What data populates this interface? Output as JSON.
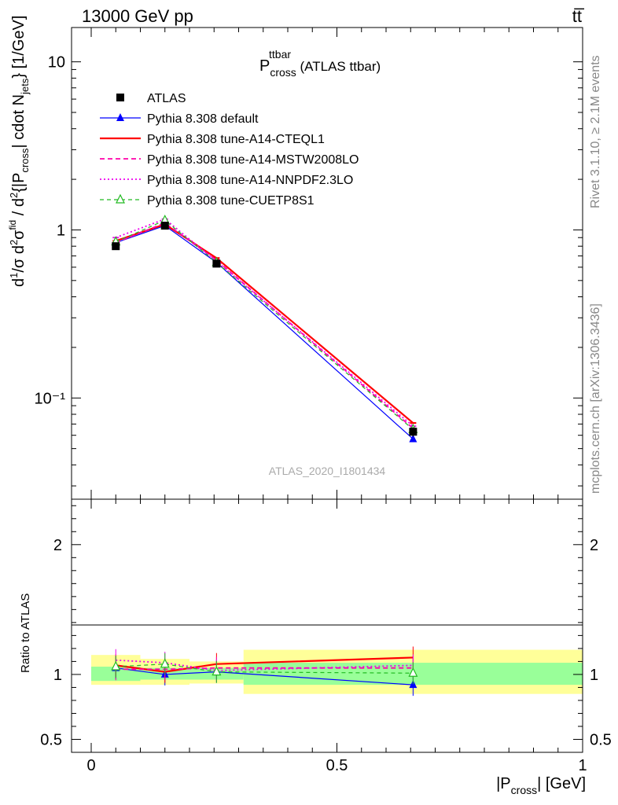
{
  "header": {
    "energy_label": "13000 GeV pp",
    "process_label": "tt̅"
  },
  "side_labels": {
    "rivet": "Rivet 3.1.10, ≥ 2.1M events",
    "mcplots": "mcplots.cern.ch [arXiv:1306.3436]"
  },
  "plot_title": {
    "main": "P",
    "sup": "ttbar",
    "sub": "cross",
    "suffix": " (ATLAS ttbar)"
  },
  "analysis_id": "ATLAS_2020_I1801434",
  "colors": {
    "atlas": "#000000",
    "default": "#0000ff",
    "cteql1": "#ff0000",
    "mstw": "#ff00aa",
    "nnpdf": "#ee00ee",
    "cuetp8s1": "#22bb22",
    "band_inner": "#99ff99",
    "band_outer": "#ffff99"
  },
  "chart_data": [
    {
      "type": "line",
      "panel": "main",
      "y_scale": "log",
      "ylim": [
        0.025,
        16
      ],
      "xlim": [
        -0.04,
        1.0
      ],
      "ylabel": "d¹/σ d²σⁱⁿᵈ / d²{|P_cross| cdot N_jets} [1/GeV]",
      "y_ticks": [
        {
          "value": 10,
          "label": "10"
        },
        {
          "value": 1,
          "label": "1"
        },
        {
          "value": 0.1,
          "label": "10⁻¹"
        }
      ],
      "x_bin_edges": [
        0,
        0.1,
        0.2,
        0.31,
        1.0
      ],
      "legend": "top-left",
      "series": [
        {
          "key": "atlas",
          "name": "ATLAS",
          "x": [
            0.05,
            0.15,
            0.255,
            0.655
          ],
          "values": [
            0.8,
            1.06,
            0.63,
            0.063
          ],
          "errors": [
            0.03,
            0.04,
            0.03,
            0.004
          ]
        },
        {
          "key": "default",
          "name": "Pythia 8.308 default",
          "x": [
            0.05,
            0.15,
            0.255,
            0.655
          ],
          "values": [
            0.84,
            1.06,
            0.64,
            0.057
          ]
        },
        {
          "key": "cteql1",
          "name": "Pythia 8.308 tune-A14-CTEQL1",
          "x": [
            0.05,
            0.15,
            0.255,
            0.655
          ],
          "values": [
            0.86,
            1.08,
            0.68,
            0.071
          ]
        },
        {
          "key": "mstw",
          "name": "Pythia 8.308 tune-A14-MSTW2008LO",
          "x": [
            0.05,
            0.15,
            0.255,
            0.655
          ],
          "values": [
            0.84,
            1.1,
            0.66,
            0.066
          ]
        },
        {
          "key": "nnpdf",
          "name": "Pythia 8.308 tune-A14-NNPDF2.3LO",
          "x": [
            0.05,
            0.15,
            0.255,
            0.655
          ],
          "values": [
            0.9,
            1.16,
            0.65,
            0.068
          ]
        },
        {
          "key": "cuetp8s1",
          "name": "Pythia 8.308 tune-CUETP8S1",
          "x": [
            0.05,
            0.15,
            0.255,
            0.655
          ],
          "values": [
            0.85,
            1.14,
            0.64,
            0.065
          ]
        }
      ]
    },
    {
      "type": "line",
      "panel": "ratio",
      "ylim": [
        0.4,
        2.35
      ],
      "xlim": [
        -0.04,
        1.0
      ],
      "xlabel": "|P_cross| [GeV]",
      "ylabel": "Ratio to ATLAS",
      "y_ticks": [
        {
          "value": 2,
          "label": "2"
        },
        {
          "value": 1,
          "label": "1"
        },
        {
          "value": 0.5,
          "label": "0.5"
        }
      ],
      "x_ticks": [
        {
          "value": 0,
          "label": "0"
        },
        {
          "value": 0.5,
          "label": "0.5"
        },
        {
          "value": 1,
          "label": "1"
        }
      ],
      "bands": [
        {
          "x0": 0,
          "x1": 0.1,
          "inner": [
            0.95,
            1.06
          ],
          "outer": [
            0.92,
            1.15
          ]
        },
        {
          "x0": 0.1,
          "x1": 0.2,
          "inner": [
            0.96,
            1.05
          ],
          "outer": [
            0.92,
            1.12
          ]
        },
        {
          "x0": 0.2,
          "x1": 0.31,
          "inner": [
            0.96,
            1.05
          ],
          "outer": [
            0.93,
            1.1
          ]
        },
        {
          "x0": 0.31,
          "x1": 1.0,
          "inner": [
            0.92,
            1.09
          ],
          "outer": [
            0.85,
            1.19
          ]
        }
      ],
      "series": [
        {
          "key": "default",
          "name": "Pythia 8.308 default",
          "x": [
            0.05,
            0.15,
            0.255,
            0.655
          ],
          "values": [
            1.05,
            1.0,
            1.02,
            0.92
          ]
        },
        {
          "key": "cteql1",
          "name": "Pythia 8.308 tune-A14-CTEQL1",
          "x": [
            0.05,
            0.15,
            0.255,
            0.655
          ],
          "values": [
            1.07,
            1.02,
            1.08,
            1.13
          ]
        },
        {
          "key": "mstw",
          "name": "Pythia 8.308 tune-A14-MSTW2008LO",
          "x": [
            0.05,
            0.15,
            0.255,
            0.655
          ],
          "values": [
            1.04,
            1.04,
            1.05,
            1.05
          ]
        },
        {
          "key": "nnpdf",
          "name": "Pythia 8.308 tune-A14-NNPDF2.3LO",
          "x": [
            0.05,
            0.15,
            0.255,
            0.655
          ],
          "values": [
            1.11,
            1.09,
            1.03,
            1.07
          ]
        },
        {
          "key": "cuetp8s1",
          "name": "Pythia 8.308 tune-CUETP8S1",
          "x": [
            0.05,
            0.15,
            0.255,
            0.655
          ],
          "values": [
            1.06,
            1.08,
            1.02,
            1.01
          ]
        }
      ]
    }
  ]
}
